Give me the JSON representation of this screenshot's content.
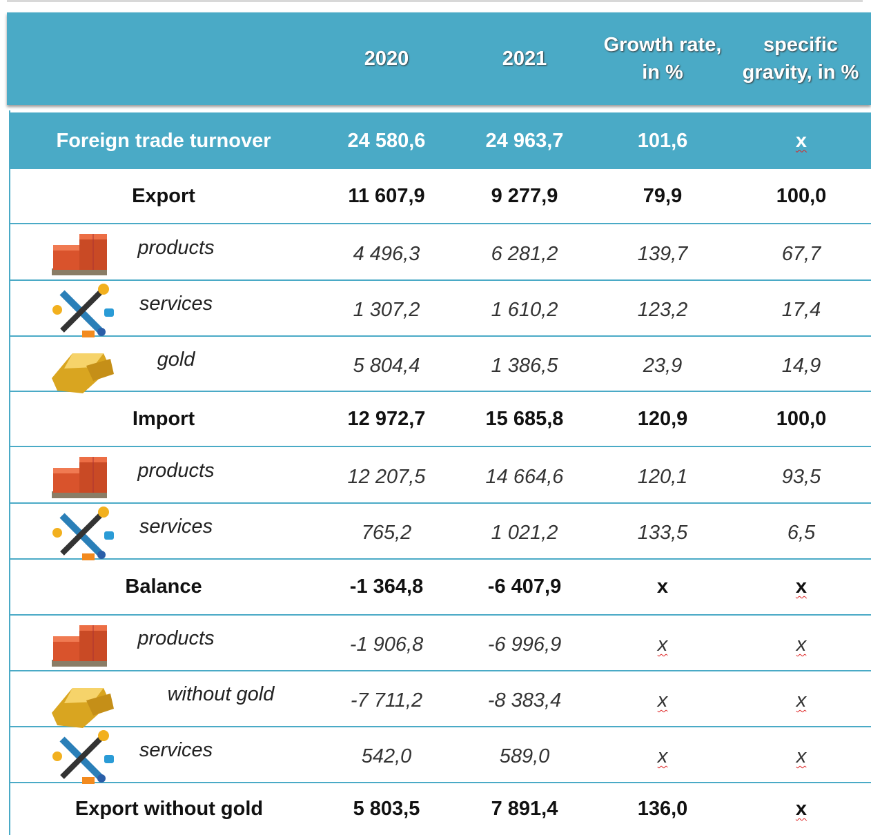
{
  "header": {
    "cells": [
      "2020",
      "2021",
      "Growth rate, in %",
      "specific gravity, in %"
    ]
  },
  "rows": [
    {
      "label": "Foreign trade turnover",
      "cells": [
        "24 580,6",
        "24 963,7",
        "101,6",
        "x"
      ]
    },
    {
      "label": "Export",
      "cells": [
        "11 607,9",
        "9 277,9",
        "79,9",
        "100,0"
      ]
    },
    {
      "label": "products",
      "cells": [
        "4 496,3",
        "6 281,2",
        "139,7",
        "67,7"
      ]
    },
    {
      "label": "services",
      "cells": [
        "1 307,2",
        "1 610,2",
        "123,2",
        "17,4"
      ]
    },
    {
      "label": "gold",
      "cells": [
        "5 804,4",
        "1 386,5",
        "23,9",
        "14,9"
      ]
    },
    {
      "label": "Import",
      "cells": [
        "12 972,7",
        "15 685,8",
        "120,9",
        "100,0"
      ]
    },
    {
      "label": "products",
      "cells": [
        "12 207,5",
        "14 664,6",
        "120,1",
        "93,5"
      ]
    },
    {
      "label": "services",
      "cells": [
        "765,2",
        "1 021,2",
        "133,5",
        "6,5"
      ]
    },
    {
      "label": "Balance",
      "cells": [
        "-1 364,8",
        "-6 407,9",
        "x",
        "x"
      ]
    },
    {
      "label": "products",
      "cells": [
        "-1 906,8",
        "-6 996,9",
        "x",
        "x"
      ]
    },
    {
      "label": "without gold",
      "cells": [
        "-7 711,2",
        "-8 383,4",
        "x",
        "x"
      ]
    },
    {
      "label": "services",
      "cells": [
        "542,0",
        "589,0",
        "x",
        "x"
      ]
    },
    {
      "label": "Export without gold",
      "cells": [
        "5 803,5",
        "7 891,4",
        "136,0",
        "x"
      ]
    }
  ]
}
